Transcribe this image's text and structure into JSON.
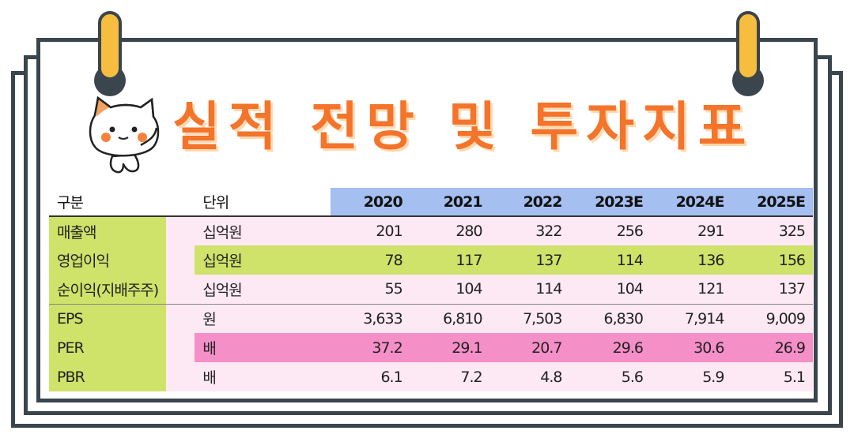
{
  "title": "실적 전망 및 투자지표",
  "colors": {
    "accent": "#f3742a",
    "header_years": "#a4bff0",
    "label_col": "#cfe26a",
    "row_bg": "#fde9f3",
    "highlight_pink": "#f58fc7",
    "clip": "#f6bd3e"
  },
  "table": {
    "header": {
      "category": "구분",
      "unit": "단위",
      "years": [
        "2020",
        "2021",
        "2022",
        "2023E",
        "2024E",
        "2025E"
      ]
    },
    "rows": [
      {
        "name": "매출액",
        "unit": "십억원",
        "values": [
          "201",
          "280",
          "322",
          "256",
          "291",
          "325"
        ]
      },
      {
        "name": "영업이익",
        "unit": "십억원",
        "values": [
          "78",
          "117",
          "137",
          "114",
          "136",
          "156"
        ]
      },
      {
        "name": "순이익(지배주주)",
        "unit": "십억원",
        "values": [
          "55",
          "104",
          "114",
          "104",
          "121",
          "137"
        ]
      },
      {
        "name": "EPS",
        "unit": "원",
        "values": [
          "3,633",
          "6,810",
          "7,503",
          "6,830",
          "7,914",
          "9,009"
        ]
      },
      {
        "name": "PER",
        "unit": "배",
        "values": [
          "37.2",
          "29.1",
          "20.7",
          "29.6",
          "30.6",
          "26.9"
        ]
      },
      {
        "name": "PBR",
        "unit": "배",
        "values": [
          "6.1",
          "7.2",
          "4.8",
          "5.6",
          "5.9",
          "5.1"
        ]
      }
    ]
  },
  "icons": {
    "mascot": "cat-mascot-icon",
    "clip": "binder-clip-icon"
  }
}
